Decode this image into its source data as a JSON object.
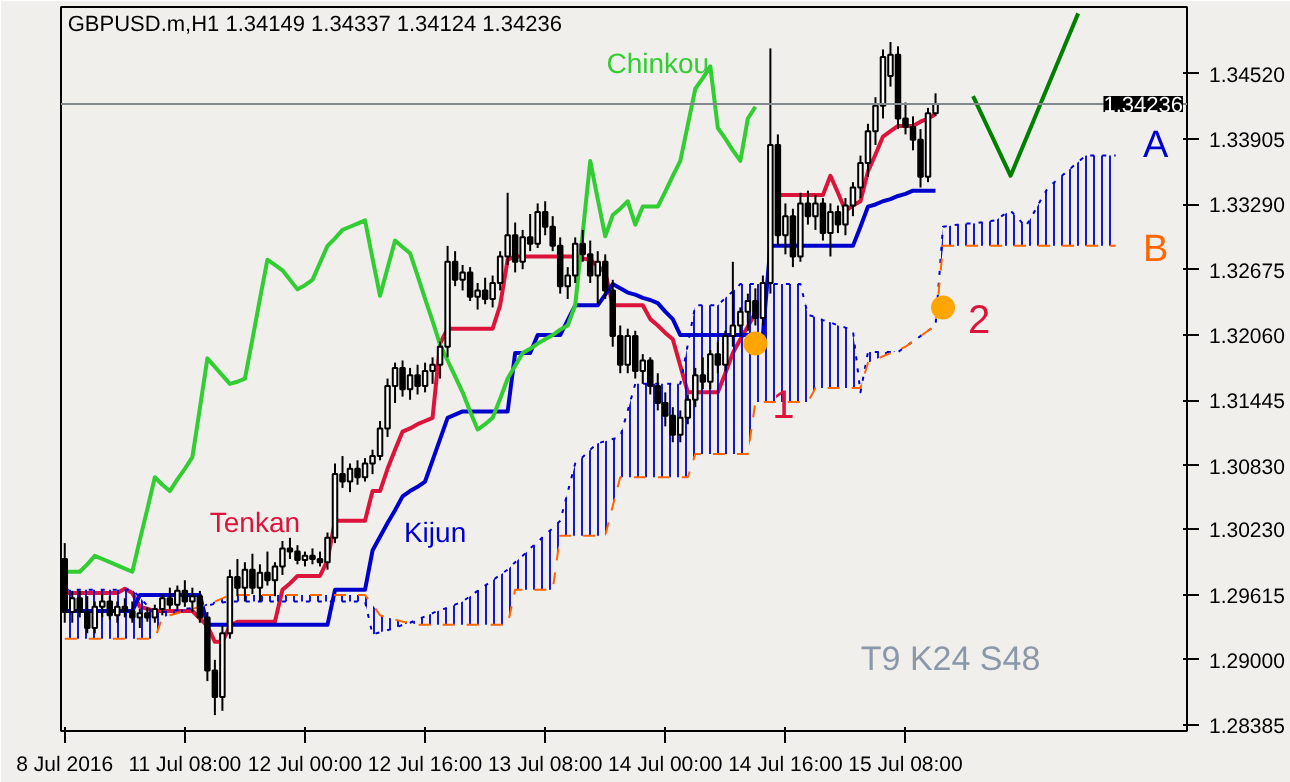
{
  "chart_data": {
    "type": "candlestick",
    "title": "GBPUSD.m,H1  1.34149 1.34337 1.34124 1.34236",
    "categories": [
      "8 Jul 2016",
      null,
      null,
      null,
      null,
      null,
      null,
      null,
      null,
      null,
      null,
      null,
      null,
      null,
      null,
      null,
      "11 Jul 08:00",
      null,
      null,
      null,
      null,
      null,
      null,
      null,
      null,
      null,
      null,
      null,
      null,
      null,
      null,
      null,
      "12 Jul 00:00",
      null,
      null,
      null,
      null,
      null,
      null,
      null,
      null,
      null,
      null,
      null,
      null,
      null,
      null,
      null,
      "12 Jul 16:00",
      null,
      null,
      null,
      null,
      null,
      null,
      null,
      null,
      null,
      null,
      null,
      null,
      null,
      null,
      null,
      "13 Jul 08:00",
      null,
      null,
      null,
      null,
      null,
      null,
      null,
      null,
      null,
      null,
      null,
      null,
      null,
      null,
      null,
      "14 Jul 00:00",
      null,
      null,
      null,
      null,
      null,
      null,
      null,
      null,
      null,
      null,
      null,
      null,
      null,
      null,
      null,
      "14 Jul 16:00",
      null,
      null,
      null,
      null,
      null,
      null,
      null,
      null,
      null,
      null,
      null,
      null,
      null,
      null,
      null,
      "15 Jul 08:00",
      null,
      null,
      null,
      null,
      null,
      null,
      null,
      null,
      null,
      null,
      null,
      null,
      null,
      null,
      null,
      null,
      null,
      null,
      null,
      null,
      null,
      null,
      null,
      null,
      null,
      null,
      null,
      null
    ],
    "ohlc": [
      [
        1.2995,
        1.301,
        1.2935,
        1.2945
      ],
      [
        1.2945,
        1.2965,
        1.2935,
        1.2958
      ],
      [
        1.2958,
        1.2965,
        1.294,
        1.2945
      ],
      [
        1.2945,
        1.296,
        1.2925,
        1.293
      ],
      [
        1.293,
        1.2955,
        1.2925,
        1.295
      ],
      [
        1.295,
        1.2962,
        1.294,
        1.2955
      ],
      [
        1.2955,
        1.296,
        1.2938,
        1.2942
      ],
      [
        1.2942,
        1.2955,
        1.2935,
        1.295
      ],
      [
        1.295,
        1.2958,
        1.294,
        1.2946
      ],
      [
        1.2946,
        1.2955,
        1.2935,
        1.294
      ],
      [
        1.294,
        1.2948,
        1.293,
        1.2944
      ],
      [
        1.2944,
        1.295,
        1.2936,
        1.294
      ],
      [
        1.294,
        1.2952,
        1.2935,
        1.2948
      ],
      [
        1.2948,
        1.2962,
        1.2942,
        1.2958
      ],
      [
        1.2958,
        1.2968,
        1.2948,
        1.2952
      ],
      [
        1.2952,
        1.297,
        1.2948,
        1.2965
      ],
      [
        1.2965,
        1.2975,
        1.295,
        1.2955
      ],
      [
        1.2955,
        1.2968,
        1.2945,
        1.296
      ],
      [
        1.296,
        1.2965,
        1.2935,
        1.294
      ],
      [
        1.294,
        1.2945,
        1.288,
        1.289
      ],
      [
        1.289,
        1.29,
        1.2848,
        1.2865
      ],
      [
        1.2865,
        1.2932,
        1.2852,
        1.2925
      ],
      [
        1.2925,
        1.2985,
        1.292,
        1.2978
      ],
      [
        1.2978,
        1.2995,
        1.296,
        1.2968
      ],
      [
        1.2968,
        1.2992,
        1.2955,
        1.2985
      ],
      [
        1.2985,
        1.3,
        1.2962,
        1.2968
      ],
      [
        1.2968,
        1.299,
        1.2955,
        1.2982
      ],
      [
        1.2982,
        1.3002,
        1.297,
        1.2975
      ],
      [
        1.2975,
        1.2992,
        1.296,
        1.2988
      ],
      [
        1.2988,
        1.3012,
        1.298,
        1.3005
      ],
      [
        1.3005,
        1.3015,
        1.2995,
        1.3002
      ],
      [
        1.3002,
        1.3008,
        1.299,
        1.2994
      ],
      [
        1.2994,
        1.3002,
        1.2988,
        1.2998
      ],
      [
        1.2998,
        1.3005,
        1.299,
        1.2995
      ],
      [
        1.2995,
        1.3002,
        1.2988,
        1.2992
      ],
      [
        1.2992,
        1.302,
        1.2985,
        1.3015
      ],
      [
        1.3015,
        1.3085,
        1.301,
        1.3075
      ],
      [
        1.3075,
        1.3092,
        1.3062,
        1.3068
      ],
      [
        1.3068,
        1.3085,
        1.3058,
        1.308
      ],
      [
        1.308,
        1.3088,
        1.3065,
        1.3072
      ],
      [
        1.3072,
        1.309,
        1.3068,
        1.3085
      ],
      [
        1.3085,
        1.3098,
        1.3075,
        1.3092
      ],
      [
        1.3092,
        1.3125,
        1.3088,
        1.3118
      ],
      [
        1.3118,
        1.3165,
        1.311,
        1.3158
      ],
      [
        1.3158,
        1.318,
        1.3142,
        1.3175
      ],
      [
        1.3175,
        1.3182,
        1.3148,
        1.3155
      ],
      [
        1.3155,
        1.3175,
        1.3145,
        1.3168
      ],
      [
        1.3168,
        1.3178,
        1.315,
        1.3158
      ],
      [
        1.3158,
        1.318,
        1.3152,
        1.3172
      ],
      [
        1.3172,
        1.3185,
        1.316,
        1.3178
      ],
      [
        1.3178,
        1.32,
        1.3165,
        1.3195
      ],
      [
        1.3195,
        1.329,
        1.3185,
        1.3275
      ],
      [
        1.3275,
        1.3285,
        1.3252,
        1.3258
      ],
      [
        1.3258,
        1.3272,
        1.3248,
        1.3265
      ],
      [
        1.3265,
        1.327,
        1.3238,
        1.3242
      ],
      [
        1.3242,
        1.3255,
        1.323,
        1.3248
      ],
      [
        1.3248,
        1.326,
        1.3235,
        1.324
      ],
      [
        1.324,
        1.3262,
        1.3232,
        1.3255
      ],
      [
        1.3255,
        1.3285,
        1.3248,
        1.328
      ],
      [
        1.328,
        1.334,
        1.3272,
        1.33
      ],
      [
        1.33,
        1.3312,
        1.3265,
        1.3275
      ],
      [
        1.3275,
        1.3305,
        1.3268,
        1.3298
      ],
      [
        1.3298,
        1.332,
        1.3285,
        1.3292
      ],
      [
        1.3292,
        1.333,
        1.3288,
        1.3322
      ],
      [
        1.3322,
        1.3332,
        1.33,
        1.3308
      ],
      [
        1.3308,
        1.3318,
        1.3285,
        1.329
      ],
      [
        1.329,
        1.3298,
        1.3245,
        1.3252
      ],
      [
        1.3252,
        1.327,
        1.324,
        1.3262
      ],
      [
        1.3262,
        1.3298,
        1.3255,
        1.3292
      ],
      [
        1.3292,
        1.3305,
        1.3275,
        1.3282
      ],
      [
        1.3282,
        1.3295,
        1.3255,
        1.3262
      ],
      [
        1.3262,
        1.3285,
        1.3235,
        1.3275
      ],
      [
        1.3275,
        1.3282,
        1.324,
        1.3248
      ],
      [
        1.3248,
        1.3258,
        1.3195,
        1.3205
      ],
      [
        1.3205,
        1.3215,
        1.317,
        1.3178
      ],
      [
        1.3178,
        1.3212,
        1.317,
        1.3205
      ],
      [
        1.3205,
        1.321,
        1.3165,
        1.3172
      ],
      [
        1.3172,
        1.3188,
        1.316,
        1.3182
      ],
      [
        1.3182,
        1.3185,
        1.315,
        1.3158
      ],
      [
        1.3158,
        1.317,
        1.3135,
        1.3142
      ],
      [
        1.3142,
        1.3152,
        1.312,
        1.313
      ],
      [
        1.313,
        1.3138,
        1.3105,
        1.3112
      ],
      [
        1.3112,
        1.3135,
        1.3105,
        1.3128
      ],
      [
        1.3128,
        1.315,
        1.3122,
        1.3145
      ],
      [
        1.3145,
        1.3175,
        1.3138,
        1.3168
      ],
      [
        1.3168,
        1.3185,
        1.3155,
        1.3162
      ],
      [
        1.3162,
        1.3192,
        1.3155,
        1.3188
      ],
      [
        1.3188,
        1.32,
        1.317,
        1.3178
      ],
      [
        1.3178,
        1.321,
        1.3172,
        1.3205
      ],
      [
        1.3205,
        1.3275,
        1.3195,
        1.3215
      ],
      [
        1.3215,
        1.3232,
        1.3205,
        1.3228
      ],
      [
        1.3228,
        1.3245,
        1.321,
        1.3238
      ],
      [
        1.3238,
        1.325,
        1.3215,
        1.3222
      ],
      [
        1.3222,
        1.3262,
        1.3215,
        1.3255
      ],
      [
        1.3255,
        1.3476,
        1.3245,
        1.3385
      ],
      [
        1.3385,
        1.3395,
        1.329,
        1.33
      ],
      [
        1.33,
        1.333,
        1.3282,
        1.3318
      ],
      [
        1.3318,
        1.3325,
        1.327,
        1.328
      ],
      [
        1.328,
        1.334,
        1.3275,
        1.333
      ],
      [
        1.333,
        1.3342,
        1.331,
        1.3318
      ],
      [
        1.3318,
        1.3338,
        1.3305,
        1.333
      ],
      [
        1.333,
        1.3335,
        1.3295,
        1.3302
      ],
      [
        1.3302,
        1.333,
        1.328,
        1.3322
      ],
      [
        1.3322,
        1.3328,
        1.3302,
        1.331
      ],
      [
        1.331,
        1.3335,
        1.33,
        1.3328
      ],
      [
        1.3328,
        1.335,
        1.3318,
        1.3345
      ],
      [
        1.3345,
        1.3375,
        1.3335,
        1.3368
      ],
      [
        1.3368,
        1.3405,
        1.3355,
        1.3398
      ],
      [
        1.3398,
        1.343,
        1.3385,
        1.3422
      ],
      [
        1.3422,
        1.3475,
        1.341,
        1.3468
      ],
      [
        1.345,
        1.3482,
        1.344,
        1.347
      ],
      [
        1.347,
        1.3478,
        1.34,
        1.341
      ],
      [
        1.341,
        1.3425,
        1.3395,
        1.3402
      ],
      [
        1.3402,
        1.3412,
        1.338,
        1.339
      ],
      [
        1.339,
        1.34,
        1.3345,
        1.3355
      ],
      [
        1.3355,
        1.342,
        1.335,
        1.3415
      ],
      [
        1.34149,
        1.34337,
        1.34124,
        1.34236
      ],
      null,
      null,
      null,
      null,
      null,
      null,
      null,
      null,
      null,
      null,
      null,
      null,
      null,
      null,
      null,
      null,
      null,
      null,
      null,
      null,
      null,
      null,
      null,
      null
    ],
    "series": [
      {
        "type": "line",
        "name": "Tenkan",
        "color": "#dc143c",
        "values": [
          1.2963,
          1.2963,
          1.2963,
          1.2963,
          1.2963,
          1.2963,
          1.2963,
          1.2963,
          1.2967,
          1.2963,
          1.295,
          1.2948,
          1.2946,
          1.2946,
          1.2946,
          1.2946,
          1.2946,
          1.2946,
          1.2939,
          1.2932,
          1.2917,
          1.2917,
          1.2932,
          1.2936,
          1.2936,
          1.2936,
          1.2936,
          1.2936,
          1.2936,
          1.2966,
          1.2972,
          1.2979,
          1.2979,
          1.2979,
          1.2979,
          1.2994,
          1.3031,
          1.3031,
          1.3031,
          1.3031,
          1.3031,
          1.3059,
          1.3059,
          1.308,
          1.3098,
          1.3115,
          1.3118,
          1.3122,
          1.3125,
          1.3128,
          1.3198,
          1.3212,
          1.3212,
          1.3212,
          1.3212,
          1.3212,
          1.3212,
          1.3212,
          1.3234,
          1.3277,
          1.328,
          1.328,
          1.328,
          1.328,
          1.328,
          1.328,
          1.328,
          1.328,
          1.328,
          1.3278,
          1.3277,
          1.3271,
          1.3265,
          1.3234,
          1.3234,
          1.3234,
          1.3234,
          1.3234,
          1.3221,
          1.3215,
          1.3208,
          1.3202,
          1.3177,
          1.3152,
          1.3152,
          1.3152,
          1.3152,
          1.3152,
          1.317,
          1.3189,
          1.3202,
          1.3214,
          1.3227,
          null,
          null,
          1.3338,
          1.3338,
          1.3338,
          1.3338,
          1.3338,
          1.3338,
          1.3338,
          1.3356,
          1.334,
          1.3323,
          1.3328,
          1.3332,
          1.336,
          1.3376,
          1.3393,
          1.3398,
          1.3403,
          1.3403,
          1.3403,
          1.3407,
          1.341,
          1.3414,
          null,
          null,
          null,
          null,
          null,
          null,
          null,
          null,
          null,
          null,
          null,
          null,
          null,
          null,
          null,
          null,
          null,
          null,
          null,
          null,
          null,
          null,
          null,
          null
        ]
      },
      {
        "type": "line",
        "name": "Kijun",
        "color": "#0000cd",
        "values": [
          1.2946,
          1.2946,
          1.2946,
          1.2946,
          1.2946,
          1.2946,
          1.2946,
          1.2946,
          1.2946,
          1.2946,
          1.2961,
          1.2961,
          1.2961,
          1.2961,
          1.2961,
          1.2961,
          1.2961,
          1.2961,
          1.2961,
          1.2933,
          1.2933,
          1.2933,
          1.2933,
          1.2933,
          1.2933,
          1.2933,
          1.2933,
          1.2933,
          1.2933,
          1.2933,
          1.2933,
          1.2933,
          1.2933,
          1.2933,
          1.2933,
          1.2933,
          1.2966,
          1.2966,
          1.2966,
          1.2966,
          1.2966,
          1.3003,
          1.3016,
          1.3029,
          1.3041,
          1.3054,
          1.3059,
          1.3063,
          1.3068,
          1.3088,
          1.3108,
          1.3128,
          1.3131,
          1.3134,
          1.3134,
          1.3134,
          1.3134,
          1.3134,
          1.3134,
          1.3134,
          1.3189,
          1.3189,
          1.3189,
          1.3206,
          1.3206,
          1.3206,
          1.3206,
          1.322,
          1.3234,
          1.3234,
          1.3234,
          1.3234,
          1.3244,
          1.3254,
          1.325,
          1.3246,
          1.3244,
          1.3241,
          1.3239,
          1.3236,
          1.3228,
          1.3221,
          1.3206,
          1.3206,
          1.3206,
          1.3206,
          1.3206,
          1.3206,
          1.3206,
          1.3206,
          1.3206,
          1.3206,
          1.3206,
          1.3206,
          1.329,
          1.329,
          1.329,
          1.329,
          1.329,
          1.329,
          1.329,
          1.329,
          1.329,
          1.329,
          1.329,
          1.329,
          1.3308,
          1.3327,
          1.3329,
          1.3332,
          1.3334,
          1.3337,
          1.3339,
          1.3342,
          1.3342,
          1.3342,
          1.3342,
          null,
          null,
          null,
          null,
          null,
          null,
          null,
          null,
          null,
          null,
          null,
          null,
          null,
          null,
          null,
          null,
          null,
          null,
          null,
          null,
          null,
          null,
          null,
          null
        ]
      },
      {
        "type": "line",
        "name": "Chinkou",
        "color": "#32cd32",
        "values": [
          1.2983,
          1.2983,
          1.2983,
          1.299,
          1.2998,
          1.2995,
          1.2992,
          1.2989,
          1.2986,
          1.2983,
          1.3013,
          1.3042,
          1.3072,
          1.3065,
          1.3059,
          1.307,
          1.308,
          1.3091,
          1.3137,
          1.3184,
          1.3176,
          1.3168,
          1.316,
          1.3162,
          1.3165,
          1.3202,
          1.324,
          1.3277,
          1.3272,
          1.3267,
          1.3258,
          1.3249,
          1.3253,
          1.3258,
          1.3274,
          1.329,
          1.3297,
          1.3305,
          1.3308,
          1.3311,
          1.3314,
          1.3278,
          1.3243,
          1.3269,
          1.3295,
          1.3289,
          1.3283,
          1.3262,
          1.324,
          1.3219,
          1.3197,
          1.3182,
          1.3167,
          1.3152,
          1.3134,
          1.3117,
          1.3122,
          1.3128,
          1.3146,
          1.3165,
          1.3177,
          1.3189,
          1.3193,
          1.3198,
          1.3202,
          1.3206,
          1.3211,
          1.3215,
          1.3234,
          1.3302,
          1.337,
          1.3334,
          1.3299,
          1.3319,
          1.3325,
          1.3332,
          1.331,
          1.3327,
          1.3327,
          1.3327,
          1.3341,
          1.3356,
          1.337,
          1.3404,
          1.3438,
          1.3448,
          1.3459,
          1.3401,
          1.3391,
          1.338,
          1.337,
          1.341,
          1.3421,
          null,
          null,
          null,
          null,
          null,
          null,
          null,
          null,
          null,
          null,
          null,
          null,
          null,
          null,
          null,
          null,
          null,
          null,
          null,
          null,
          null,
          null,
          null,
          null,
          null,
          null,
          null,
          null,
          null,
          null,
          null,
          null,
          null,
          null,
          null,
          null,
          null,
          null,
          null,
          null,
          null,
          null,
          null,
          null,
          null,
          null,
          null,
          null
        ]
      },
      {
        "type": "line",
        "name": "A",
        "color": "#0000cd",
        "line_style": "dotted",
        "values": [
          1.2966,
          1.2966,
          1.2966,
          1.2966,
          1.2966,
          1.2966,
          1.2966,
          1.2966,
          1.2966,
          1.2966,
          1.2959,
          1.2951,
          1.2944,
          1.2945,
          1.2946,
          1.2947,
          1.2948,
          1.2949,
          1.295,
          1.2951,
          1.2953,
          1.2954,
          1.2955,
          1.2955,
          1.2955,
          1.2955,
          1.2955,
          1.2955,
          1.2955,
          1.2955,
          1.2955,
          1.2955,
          1.2955,
          1.2955,
          1.2955,
          1.2955,
          1.2955,
          1.2955,
          1.2955,
          1.2955,
          1.2955,
          1.2924,
          1.2926,
          1.2928,
          1.293,
          1.2933,
          1.2935,
          1.2938,
          1.2941,
          1.2944,
          1.2947,
          1.2949,
          1.2952,
          1.2955,
          1.296,
          1.2965,
          1.297,
          1.2975,
          1.298,
          1.2985,
          1.2992,
          1.2998,
          1.3005,
          1.3011,
          1.3018,
          1.3024,
          1.3031,
          1.3058,
          1.3085,
          1.3091,
          1.3098,
          1.3104,
          1.3106,
          1.3108,
          1.311,
          1.3135,
          1.316,
          1.316,
          1.316,
          1.316,
          1.316,
          1.316,
          1.316,
          1.3197,
          1.3234,
          1.3234,
          1.3234,
          1.3234,
          1.3241,
          1.3247,
          1.3254,
          1.3254,
          1.3254,
          1.3254,
          1.3254,
          1.3254,
          1.3254,
          1.3254,
          1.3254,
          1.3225,
          1.3223,
          1.322,
          1.3218,
          1.3215,
          1.3213,
          1.321,
          1.3152,
          1.319,
          1.319,
          1.319,
          1.319,
          1.319,
          1.3195,
          1.32,
          1.3205,
          1.321,
          1.3215,
          1.3308,
          1.3309,
          1.331,
          1.3311,
          1.3311,
          1.3312,
          1.3313,
          1.3314,
          1.3319,
          1.3323,
          1.3316,
          1.3308,
          1.332,
          1.3333,
          1.3345,
          1.3351,
          1.3357,
          1.3363,
          1.3369,
          1.3375,
          1.3375,
          1.3375,
          1.3375,
          1.3375
        ],
        "upper": [
          1.2966,
          1.2966,
          1.2966,
          1.2966,
          1.2966,
          1.2966,
          1.2966,
          1.2966,
          1.2966,
          1.2966,
          1.2959,
          1.2951,
          1.2944,
          1.2945,
          1.2946,
          1.2947,
          1.2948,
          1.2949,
          1.295,
          1.2951,
          1.2953,
          1.2954,
          1.2955,
          1.2955,
          1.2955,
          1.2955,
          1.2955,
          1.2955,
          1.2955,
          1.2955,
          1.2955,
          1.2955,
          1.2955,
          1.2955,
          1.2955,
          1.2955,
          1.2955,
          1.2955,
          1.2955,
          1.2955,
          1.2955,
          1.2924,
          1.2926,
          1.2928,
          1.293,
          1.2933,
          1.2935,
          1.2938,
          1.2941,
          1.2944,
          1.2947,
          1.2949,
          1.2952,
          1.2955,
          1.296,
          1.2965,
          1.297,
          1.2975,
          1.298,
          1.2985,
          1.2992,
          1.2998,
          1.3005,
          1.3011,
          1.3018,
          1.3024,
          1.3031,
          1.3058,
          1.3085,
          1.3091,
          1.3098,
          1.3104,
          1.3106,
          1.3108,
          1.311,
          1.3135,
          1.316,
          1.316,
          1.316,
          1.316,
          1.316,
          1.316,
          1.316,
          1.3197,
          1.3234,
          1.3234,
          1.3234,
          1.3234,
          1.3241,
          1.3247,
          1.3254,
          1.3254,
          1.3254,
          1.3254,
          1.3254,
          1.3254,
          1.3254,
          1.3254,
          1.3254,
          1.3225,
          1.3223,
          1.322,
          1.3218,
          1.3215,
          1.3213,
          1.321,
          1.3152,
          1.319,
          1.319,
          1.319,
          1.319,
          1.319,
          1.3195,
          1.32,
          1.3205,
          1.321,
          1.3215,
          1.3308,
          1.3309,
          1.331,
          1.3311,
          1.3311,
          1.3312,
          1.3313,
          1.3314,
          1.3319,
          1.3323,
          1.3316,
          1.3308,
          1.332,
          1.3333,
          1.3345,
          1.3351,
          1.3357,
          1.3363,
          1.3369,
          1.3375,
          1.3375,
          1.3375,
          1.3375,
          1.3375
        ],
        "lower": [
          1.292,
          1.292,
          1.292,
          1.292,
          1.292,
          1.292,
          1.292,
          1.292,
          1.292,
          1.292,
          1.292,
          1.292,
          1.292,
          1.294,
          1.2942,
          1.2944,
          1.2946,
          1.2948,
          1.295,
          1.2953,
          1.2955,
          1.2958,
          1.2961,
          1.2961,
          1.2961,
          1.2961,
          1.2961,
          1.2961,
          1.2961,
          1.2961,
          1.2961,
          1.2961,
          1.2961,
          1.2961,
          1.2961,
          1.2961,
          1.2961,
          1.2961,
          1.2961,
          1.2961,
          1.2961,
          1.2952,
          1.2942,
          1.294,
          1.2938,
          1.2936,
          1.2935,
          1.2933,
          1.2933,
          1.2933,
          1.2933,
          1.2933,
          1.2933,
          1.2933,
          1.2933,
          1.2933,
          1.2933,
          1.2933,
          1.2933,
          1.2933,
          1.2966,
          1.2966,
          1.2966,
          1.2966,
          1.2966,
          1.2966,
          1.3017,
          1.3017,
          1.3017,
          1.3017,
          1.3017,
          1.3017,
          1.3017,
          1.3045,
          1.3072,
          1.3072,
          1.3072,
          1.3072,
          1.3072,
          1.3072,
          1.3072,
          1.3072,
          1.3072,
          1.3072,
          1.3094,
          1.3094,
          1.3094,
          1.3094,
          1.3094,
          1.3094,
          1.3094,
          1.3094,
          1.3143,
          1.3143,
          1.3143,
          1.3143,
          1.3143,
          1.3143,
          1.3143,
          1.3143,
          1.3156,
          1.3156,
          1.3156,
          1.3156,
          1.3156,
          1.3156,
          1.3156,
          1.318,
          1.3183,
          1.3186,
          1.3189,
          1.3192,
          1.3195,
          1.32,
          1.3205,
          1.321,
          1.3215,
          1.329,
          1.329,
          1.329,
          1.329,
          1.329,
          1.329,
          1.329,
          1.329,
          1.329,
          1.329,
          1.329,
          1.329,
          1.329,
          1.329,
          1.329,
          1.329,
          1.329,
          1.329,
          1.329,
          1.329,
          1.329,
          1.329,
          1.329,
          1.329
        ]
      },
      {
        "type": "line",
        "name": "B",
        "color": "#ff6600",
        "line_style": "dashed",
        "values": [
          1.292,
          1.292,
          1.292,
          1.292,
          1.292,
          1.292,
          1.292,
          1.292,
          1.292,
          1.292,
          1.292,
          1.292,
          1.292,
          1.294,
          1.2942,
          1.2944,
          1.2946,
          1.2948,
          1.295,
          1.2953,
          1.2955,
          1.2958,
          1.2961,
          1.2961,
          1.2961,
          1.2961,
          1.2961,
          1.2961,
          1.2961,
          1.2961,
          1.2961,
          1.2961,
          1.2961,
          1.2961,
          1.2961,
          1.2961,
          1.2961,
          1.2961,
          1.2961,
          1.2961,
          1.2961,
          1.2952,
          1.2942,
          1.294,
          1.2938,
          1.2936,
          1.2935,
          1.2933,
          1.2933,
          1.2933,
          1.2933,
          1.2933,
          1.2933,
          1.2933,
          1.2933,
          1.2933,
          1.2933,
          1.2933,
          1.2933,
          1.2933,
          1.2966,
          1.2966,
          1.2966,
          1.2966,
          1.2966,
          1.2966,
          1.3017,
          1.3017,
          1.3017,
          1.3017,
          1.3017,
          1.3017,
          1.3017,
          1.3045,
          1.3072,
          1.3072,
          1.3072,
          1.3072,
          1.3072,
          1.3072,
          1.3072,
          1.3072,
          1.3072,
          1.3072,
          1.3094,
          1.3094,
          1.3094,
          1.3094,
          1.3094,
          1.3094,
          1.3094,
          1.3094,
          1.3143,
          1.3143,
          1.3143,
          1.3143,
          1.3143,
          1.3143,
          1.3143,
          1.3143,
          1.3156,
          1.3156,
          1.3156,
          1.3156,
          1.3156,
          1.3156,
          1.3156,
          1.318,
          1.3183,
          1.3186,
          1.3189,
          1.3192,
          1.3195,
          1.32,
          1.3205,
          1.321,
          1.3215,
          1.329,
          1.329,
          1.329,
          1.329,
          1.329,
          1.329,
          1.329,
          1.329,
          1.329,
          1.329,
          1.329,
          1.329,
          1.329,
          1.329,
          1.329,
          1.329,
          1.329,
          1.329,
          1.329,
          1.329,
          1.329,
          1.329,
          1.329,
          1.329
        ]
      },
      {
        "type": "line",
        "color": "#008000",
        "values": [
          null,
          null,
          null,
          null,
          null,
          null,
          null,
          null,
          null,
          null,
          null,
          null,
          null,
          null,
          null,
          null,
          null,
          null,
          null,
          null,
          null,
          null,
          null,
          null,
          null,
          null,
          null,
          null,
          null,
          null,
          null,
          null,
          null,
          null,
          null,
          null,
          null,
          null,
          null,
          null,
          null,
          null,
          null,
          null,
          null,
          null,
          null,
          null,
          null,
          null,
          null,
          null,
          null,
          null,
          null,
          null,
          null,
          null,
          null,
          null,
          null,
          null,
          null,
          null,
          null,
          null,
          null,
          null,
          null,
          null,
          null,
          null,
          null,
          null,
          null,
          null,
          null,
          null,
          null,
          null,
          null,
          null,
          null,
          null,
          null,
          null,
          null,
          null,
          null,
          null,
          null,
          null,
          null,
          null,
          null,
          null,
          null,
          null,
          null,
          null,
          null,
          null,
          null,
          null,
          null,
          null,
          null,
          null,
          null,
          null,
          null,
          null,
          null,
          null,
          null,
          null,
          null,
          null,
          null,
          null,
          null,
          1.3431,
          1.3416,
          1.3401,
          1.3386,
          1.3371,
          1.3356,
          1.3373,
          1.339,
          1.3407,
          1.3424,
          1.3441,
          1.3458,
          1.3475,
          1.3492,
          1.3509,
          null,
          null,
          null,
          null,
          null
        ]
      },
      {
        "type": "scatter",
        "color": "#ffa500",
        "marker": "circle",
        "values": [
          null,
          null,
          null,
          null,
          null,
          null,
          null,
          null,
          null,
          null,
          null,
          null,
          null,
          null,
          null,
          null,
          null,
          null,
          null,
          null,
          null,
          null,
          null,
          null,
          null,
          null,
          null,
          null,
          null,
          null,
          null,
          null,
          null,
          null,
          null,
          null,
          null,
          null,
          null,
          null,
          null,
          null,
          null,
          null,
          null,
          null,
          null,
          null,
          null,
          null,
          null,
          null,
          null,
          null,
          null,
          null,
          null,
          null,
          null,
          null,
          null,
          null,
          null,
          null,
          null,
          null,
          null,
          null,
          null,
          null,
          null,
          null,
          null,
          null,
          null,
          null,
          null,
          null,
          null,
          null,
          null,
          null,
          null,
          null,
          null,
          null,
          null,
          null,
          null,
          null,
          null,
          null,
          1.3198,
          null,
          null,
          null,
          null,
          null,
          null,
          null,
          null,
          null,
          null,
          null,
          null,
          null,
          null,
          null,
          null,
          null,
          null,
          null,
          null,
          null,
          null,
          null,
          null,
          1.3232,
          null,
          null,
          null,
          null,
          null,
          null,
          null,
          null,
          null,
          null,
          null,
          null,
          null,
          null,
          null,
          null,
          null,
          null,
          null,
          null,
          null,
          null,
          null
        ]
      }
    ],
    "ylim": [
      1.2833,
      1.3515
    ],
    "yticks": [
      {
        "value": 1.28385,
        "label": "1.28385"
      },
      {
        "value": 1.29,
        "label": "1.29000"
      },
      {
        "value": 1.29615,
        "label": "1.29615"
      },
      {
        "value": 1.3023,
        "label": "1.30230"
      },
      {
        "value": 1.3083,
        "label": "1.30830"
      },
      {
        "value": 1.31445,
        "label": "1.31445"
      },
      {
        "value": 1.3206,
        "label": "1.32060"
      },
      {
        "value": 1.32675,
        "label": "1.32675"
      },
      {
        "value": 1.3329,
        "label": "1.33290"
      },
      {
        "value": 1.33905,
        "label": "1.33905"
      },
      {
        "value": 1.3452,
        "label": "1.34520"
      }
    ],
    "ref_lines": [
      {
        "axis": "y",
        "value": 1.34236,
        "label": "1.34236",
        "color": "#808890"
      }
    ],
    "annotations": [
      "1",
      "2",
      "T9 K24 S48"
    ]
  }
}
